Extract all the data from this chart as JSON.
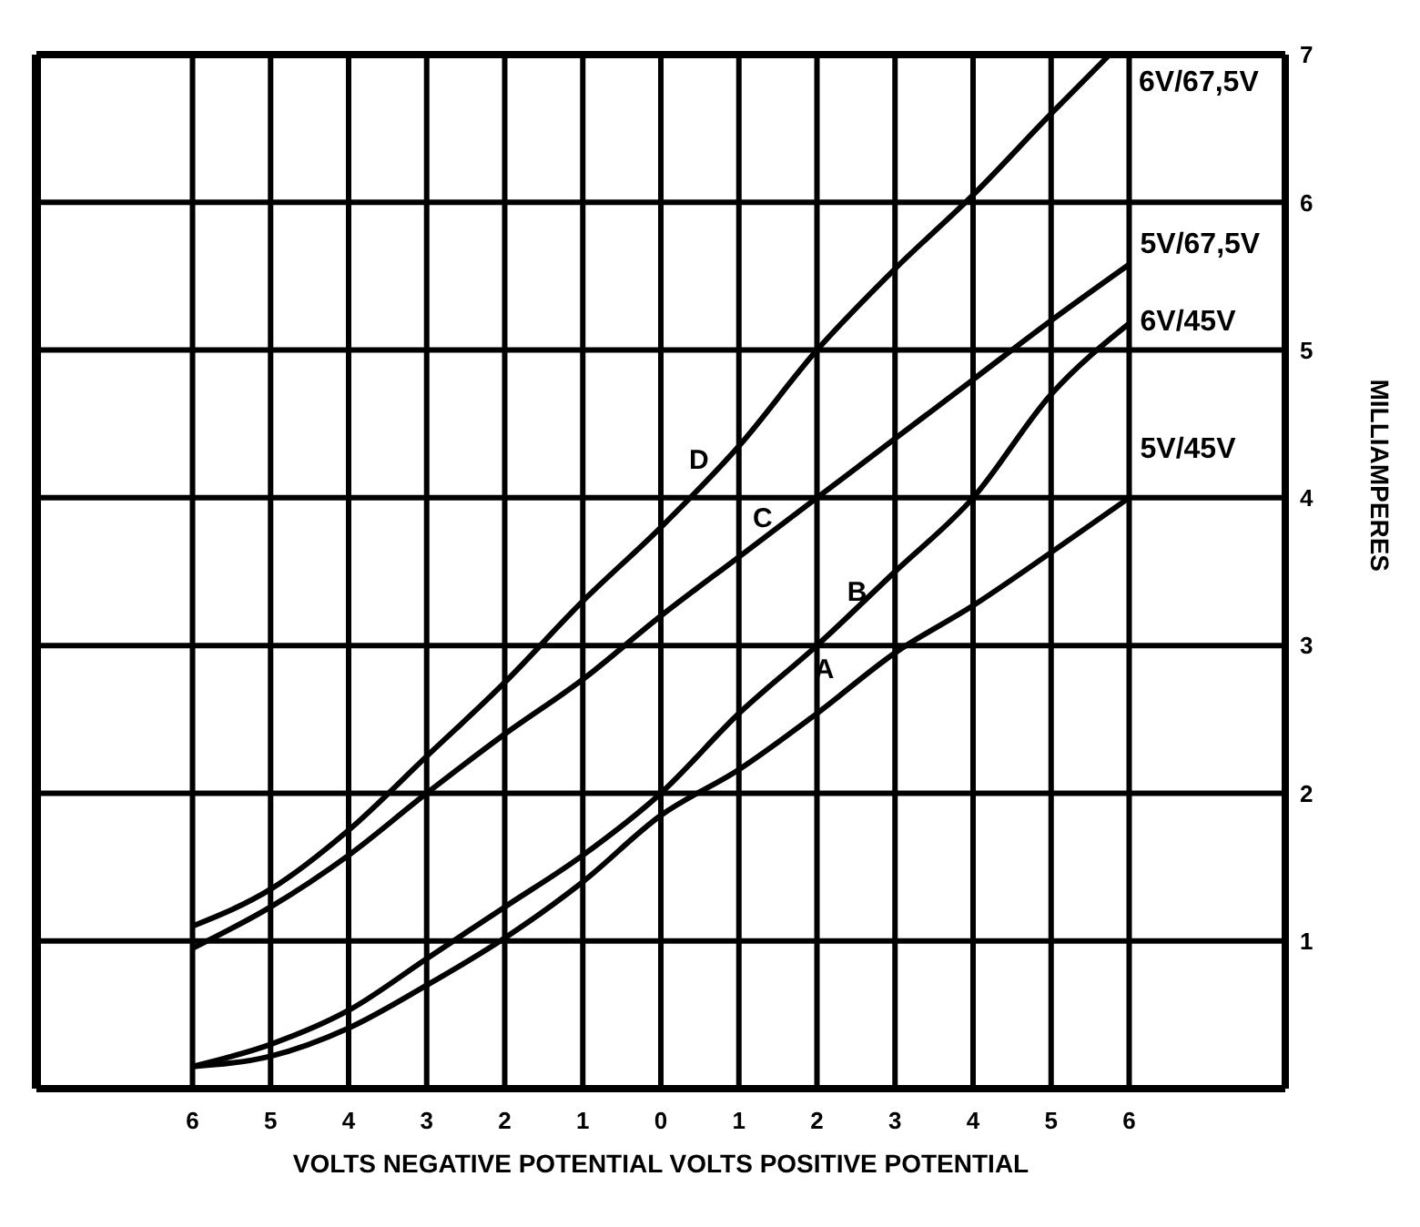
{
  "chart_data": {
    "type": "line",
    "xlabel": "VOLTS NEGATIVE POTENTIAL   VOLTS POSITIVE POTENTIAL",
    "ylabel": "MILLIAMPERES",
    "xlim": [
      -8,
      8
    ],
    "xticks": [
      {
        "value": -6,
        "label": "6"
      },
      {
        "value": -5,
        "label": "5"
      },
      {
        "value": -4,
        "label": "4"
      },
      {
        "value": -3,
        "label": "3"
      },
      {
        "value": -2,
        "label": "2"
      },
      {
        "value": -1,
        "label": "1"
      },
      0,
      1,
      2,
      3,
      4,
      5,
      6
    ],
    "ylim": [
      0,
      7
    ],
    "yticks": [
      1,
      2,
      3,
      4,
      5,
      6,
      7
    ],
    "grid": true,
    "legend": false,
    "marker": "none",
    "line_style": "solid",
    "series": [
      {
        "name": "6V/67,5V",
        "color": "#000000",
        "x": [
          -6,
          -5,
          -4,
          -3,
          -2,
          -1,
          0,
          1,
          2,
          3,
          4,
          5,
          5.75
        ],
        "values": [
          1.1,
          1.35,
          1.75,
          2.25,
          2.75,
          3.3,
          3.8,
          4.35,
          5.0,
          5.55,
          6.05,
          6.6,
          7.0
        ]
      },
      {
        "name": "5V/67,5V",
        "color": "#000000",
        "x": [
          -6,
          -5,
          -4,
          -3,
          -2,
          -1,
          0,
          1,
          2,
          3,
          4,
          5,
          6
        ],
        "values": [
          0.95,
          1.23,
          1.58,
          2.0,
          2.4,
          2.77,
          3.2,
          3.6,
          4.0,
          4.4,
          4.8,
          5.2,
          5.58
        ]
      },
      {
        "name": "6V/45V",
        "color": "#000000",
        "x": [
          -6,
          -5,
          -4,
          -3,
          -2,
          -1,
          0,
          1,
          2,
          3,
          4,
          5,
          6
        ],
        "values": [
          0.15,
          0.3,
          0.53,
          0.88,
          1.23,
          1.58,
          2.0,
          2.54,
          3.0,
          3.5,
          4.0,
          4.7,
          5.18
        ]
      },
      {
        "name": "5V/45V",
        "color": "#000000",
        "x": [
          -6,
          -5,
          -4,
          -3,
          -2,
          -1,
          0,
          1,
          2,
          3,
          4,
          5,
          6
        ],
        "values": [
          0.15,
          0.22,
          0.41,
          0.7,
          1.02,
          1.4,
          1.85,
          2.16,
          2.54,
          2.95,
          3.27,
          3.63,
          4.0
        ]
      }
    ],
    "annotations": [
      "D",
      "C",
      "B",
      "A"
    ]
  }
}
